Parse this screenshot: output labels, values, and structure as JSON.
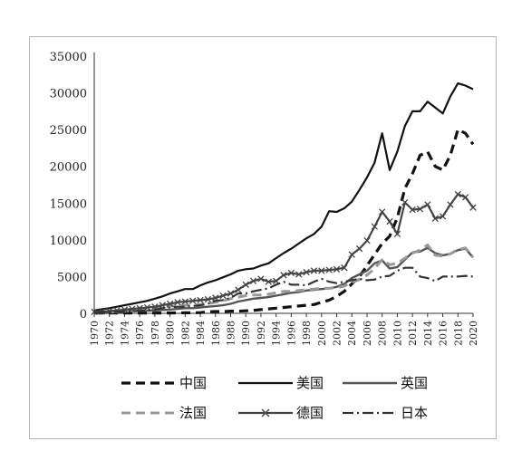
{
  "chart_data": {
    "type": "line",
    "title": "",
    "xlabel": "",
    "ylabel": "",
    "ylim": [
      0,
      35000
    ],
    "yticks": [
      0,
      5000,
      10000,
      15000,
      20000,
      25000,
      30000,
      35000
    ],
    "xlim": [
      1970,
      2020
    ],
    "xticks": [
      "1970",
      "1972",
      "1974",
      "1976",
      "1978",
      "1980",
      "1982",
      "1984",
      "1986",
      "1988",
      "1990",
      "1992",
      "1994",
      "1996",
      "1998",
      "2000",
      "2002",
      "2004",
      "2006",
      "2008",
      "2010",
      "2012",
      "2014",
      "2016",
      "2018",
      "2020"
    ],
    "grid": false,
    "legend_position": "bottom",
    "x": [
      1970,
      1971,
      1972,
      1973,
      1974,
      1975,
      1976,
      1977,
      1978,
      1979,
      1980,
      1981,
      1982,
      1983,
      1984,
      1985,
      1986,
      1987,
      1988,
      1989,
      1990,
      1991,
      1992,
      1993,
      1994,
      1995,
      1996,
      1997,
      1998,
      1999,
      2000,
      2001,
      2002,
      2003,
      2004,
      2005,
      2006,
      2007,
      2008,
      2009,
      2010,
      2011,
      2012,
      2013,
      2014,
      2015,
      2016,
      2017,
      2018,
      2019,
      2020
    ],
    "series": [
      {
        "name": "中国",
        "color": "#111111",
        "dash": "10,6",
        "width": 3.2,
        "marker": "none",
        "values": [
          40,
          40,
          40,
          40,
          40,
          40,
          40,
          40,
          40,
          50,
          50,
          60,
          70,
          80,
          100,
          200,
          250,
          250,
          300,
          300,
          350,
          400,
          500,
          600,
          700,
          800,
          900,
          1000,
          1100,
          1200,
          1500,
          1800,
          2300,
          3000,
          4000,
          5000,
          6500,
          8000,
          9500,
          10500,
          13000,
          17000,
          19000,
          21500,
          22000,
          20000,
          19500,
          21500,
          25000,
          24500,
          23000
        ]
      },
      {
        "name": "美国",
        "color": "#111111",
        "dash": "",
        "width": 2.2,
        "marker": "none",
        "values": [
          400,
          550,
          700,
          900,
          1100,
          1300,
          1500,
          1700,
          2000,
          2300,
          2700,
          3000,
          3300,
          3300,
          3800,
          4200,
          4500,
          4900,
          5300,
          5800,
          6000,
          6100,
          6500,
          6800,
          7500,
          8200,
          8800,
          9500,
          10200,
          10800,
          11800,
          13900,
          13800,
          14300,
          15200,
          16800,
          18500,
          20500,
          24500,
          19500,
          22000,
          25500,
          27500,
          27500,
          28800,
          28000,
          27200,
          29500,
          31300,
          31000,
          30500
        ]
      },
      {
        "name": "英国",
        "color": "#555555",
        "dash": "",
        "width": 2.4,
        "marker": "none",
        "values": [
          120,
          150,
          180,
          200,
          250,
          300,
          330,
          360,
          400,
          450,
          500,
          600,
          700,
          700,
          800,
          900,
          1000,
          1100,
          1300,
          1600,
          1800,
          2000,
          2100,
          2200,
          2400,
          2600,
          2800,
          2900,
          3100,
          3200,
          3300,
          3400,
          3600,
          4000,
          4800,
          5300,
          5800,
          6800,
          7200,
          6100,
          6300,
          7300,
          8300,
          8400,
          8900,
          8200,
          7900,
          8100,
          8600,
          8800,
          7600
        ]
      },
      {
        "name": "法国",
        "color": "#999999",
        "dash": "10,6",
        "width": 3.0,
        "marker": "none",
        "values": [
          120,
          150,
          180,
          200,
          300,
          400,
          500,
          600,
          700,
          800,
          1000,
          1000,
          1100,
          1100,
          1200,
          1300,
          1500,
          1700,
          2000,
          2200,
          2400,
          2500,
          2500,
          2600,
          2800,
          3000,
          3000,
          3100,
          3200,
          3300,
          3400,
          3400,
          3500,
          3700,
          4200,
          4600,
          5200,
          6100,
          7300,
          6600,
          6800,
          7500,
          8200,
          8600,
          9300,
          7900,
          7800,
          8100,
          8700,
          8900,
          7600
        ]
      },
      {
        "name": "德国",
        "color": "#444444",
        "dash": "",
        "width": 2.2,
        "marker": "x",
        "values": [
          200,
          250,
          300,
          400,
          500,
          600,
          700,
          800,
          900,
          1100,
          1300,
          1500,
          1600,
          1700,
          1800,
          1900,
          2100,
          2400,
          2700,
          3200,
          3900,
          4400,
          4700,
          4300,
          4400,
          5200,
          5500,
          5300,
          5600,
          5800,
          5800,
          5900,
          6000,
          6200,
          8000,
          8800,
          9900,
          11800,
          13800,
          12500,
          10800,
          15100,
          14100,
          14200,
          14800,
          12900,
          13200,
          14800,
          16200,
          15800,
          14400
        ]
      },
      {
        "name": "日本",
        "color": "#333333",
        "dash": "12,4,2,4",
        "width": 2.2,
        "marker": "none",
        "values": [
          100,
          120,
          150,
          200,
          250,
          300,
          350,
          400,
          500,
          700,
          800,
          900,
          900,
          1000,
          1100,
          1300,
          1700,
          1800,
          2100,
          2700,
          2700,
          3000,
          3200,
          3400,
          3900,
          4300,
          3900,
          3900,
          3800,
          4300,
          4700,
          4300,
          4100,
          4300,
          4500,
          4700,
          4500,
          4600,
          5000,
          5100,
          5800,
          6200,
          6200,
          5000,
          4800,
          4400,
          5000,
          5000,
          5000,
          5100,
          5000
        ]
      }
    ]
  },
  "legend": {
    "items": [
      {
        "label": "中国"
      },
      {
        "label": "美国"
      },
      {
        "label": "英国"
      },
      {
        "label": "法国"
      },
      {
        "label": "德国"
      },
      {
        "label": "日本"
      }
    ]
  }
}
